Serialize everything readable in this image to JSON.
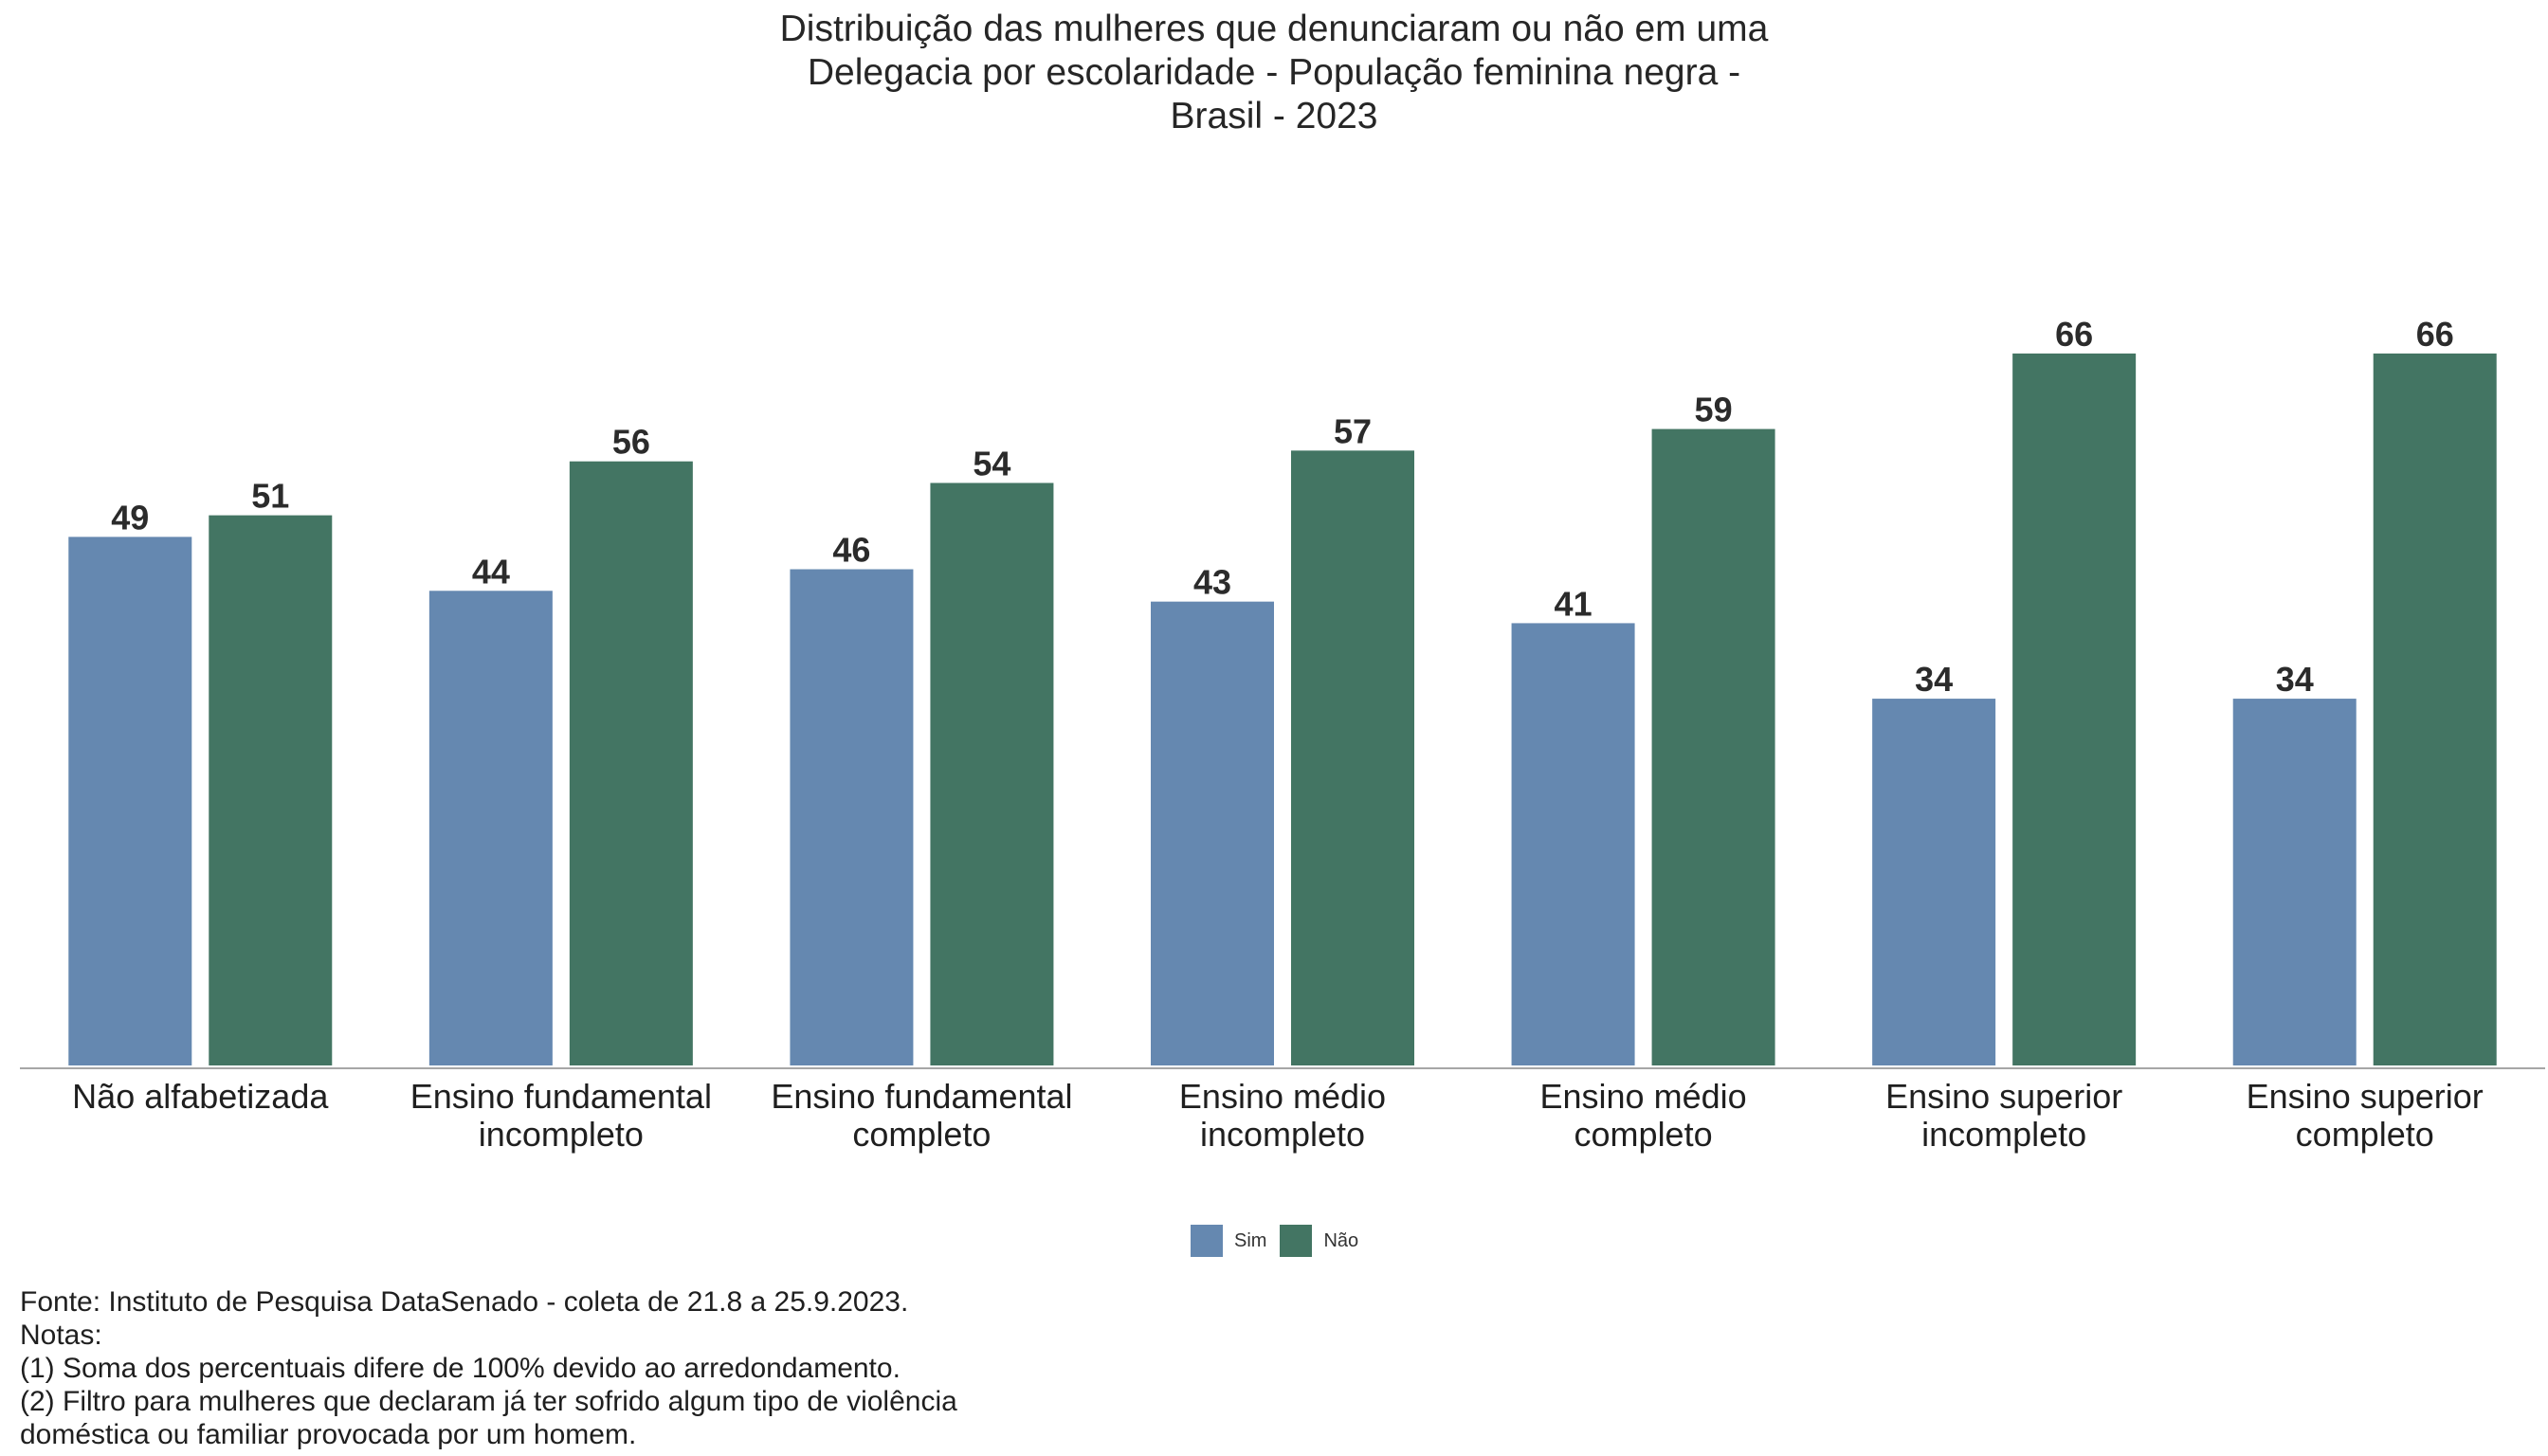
{
  "chart_data": {
    "type": "bar",
    "title": [
      "Distribuição das mulheres que denunciaram ou não em uma",
      "Delegacia por escolaridade - População feminina negra -",
      "Brasil - 2023"
    ],
    "categories": [
      [
        "Não alfabetizada"
      ],
      [
        "Ensino fundamental",
        "incompleto"
      ],
      [
        "Ensino fundamental",
        "completo"
      ],
      [
        "Ensino médio",
        "incompleto"
      ],
      [
        "Ensino médio",
        "completo"
      ],
      [
        "Ensino superior",
        "incompleto"
      ],
      [
        "Ensino superior",
        "completo"
      ]
    ],
    "series": [
      {
        "name": "Sim",
        "color": "#6588b0",
        "values": [
          49,
          44,
          46,
          43,
          41,
          34,
          34
        ]
      },
      {
        "name": "Não",
        "color": "#437563",
        "values": [
          51,
          56,
          54,
          57,
          59,
          66,
          66
        ]
      }
    ],
    "ylim": [
      0,
      66
    ],
    "grid": false,
    "legend_position": "bottom"
  },
  "footnotes": [
    "Fonte: Instituto de Pesquisa DataSenado - coleta de 21.8 a 25.9.2023.",
    "Notas:",
    "(1) Soma dos percentuais difere de 100% devido ao arredondamento.",
    "(2) Filtro para mulheres que declaram já ter sofrido algum tipo de violência",
    "doméstica ou familiar provocada por um homem."
  ]
}
